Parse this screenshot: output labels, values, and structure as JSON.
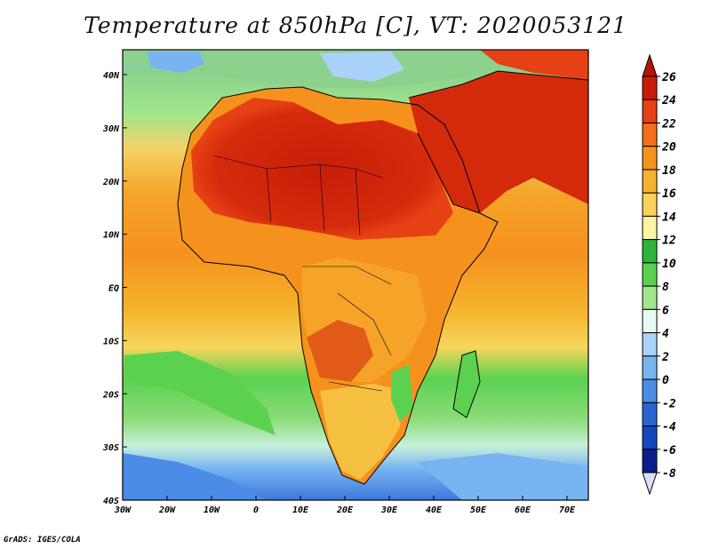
{
  "title": "Temperature at 850hPa [C], VT: 2020053121",
  "credit": "GrADS: IGES/COLA",
  "lat_ticks": [
    "40N",
    "30N",
    "20N",
    "10N",
    "EQ",
    "10S",
    "20S",
    "30S",
    "40S"
  ],
  "lon_ticks": [
    "30W",
    "20W",
    "10W",
    "0",
    "10E",
    "20E",
    "30E",
    "40E",
    "50E",
    "60E",
    "70E"
  ],
  "map_extent": {
    "lon": [
      -30,
      75
    ],
    "lat": [
      -40,
      45
    ]
  },
  "colorbar": {
    "levels": [
      "26",
      "24",
      "22",
      "20",
      "18",
      "16",
      "14",
      "12",
      "10",
      "8",
      "6",
      "4",
      "2",
      "0",
      "-2",
      "-4",
      "-6",
      "-8"
    ],
    "colors": [
      "#c81e0a",
      "#e64114",
      "#f56e19",
      "#f5921e",
      "#f5b42d",
      "#fad25a",
      "#fff5a0",
      "#2db43c",
      "#5ad250",
      "#a0e68c",
      "#e6faf0",
      "#aad2fa",
      "#78b4f0",
      "#4b8ce6",
      "#2864d2",
      "#1446be",
      "#0a1e8c",
      "#000050"
    ],
    "top_arrow_color": "#b41400",
    "bottom_arrow_color": "#dcdcff"
  },
  "colors": {
    "ocean_north": "#8cd28c",
    "ocean_tropical": "#f5b42d",
    "ocean_south": "#5ad250",
    "hot_core": "#c81e0a"
  }
}
